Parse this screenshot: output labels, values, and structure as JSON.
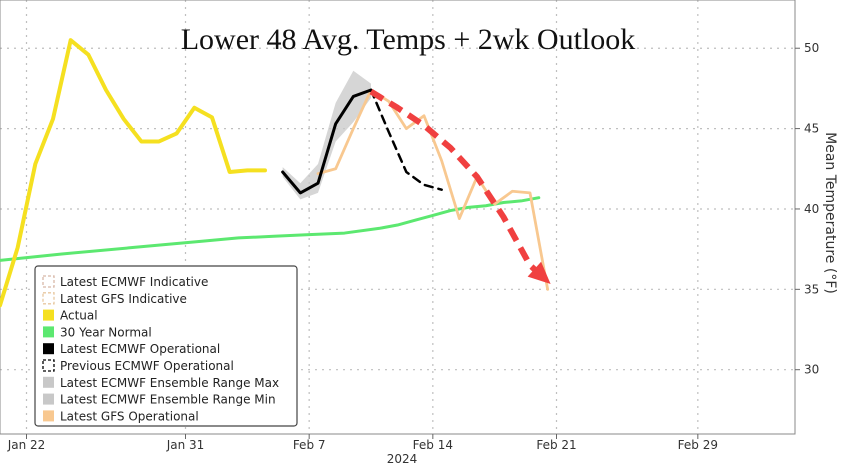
{
  "chart_data": {
    "type": "line",
    "title": "Lower 48 Avg. Temps + 2wk Outlook",
    "xlabel": "2024",
    "ylabel": "Mean Temperature (°F)",
    "ylim": [
      26,
      53
    ],
    "y_ticks": [
      30,
      35,
      40,
      45,
      50
    ],
    "x_ticks": [
      {
        "label": "Jan 22",
        "day": 22
      },
      {
        "label": "Jan 31",
        "day": 31
      },
      {
        "label": "Feb 7",
        "day": 38
      },
      {
        "label": "Feb 14",
        "day": 45
      },
      {
        "label": "Feb 21",
        "day": 52
      },
      {
        "label": "Feb 29",
        "day": 60
      }
    ],
    "xlim": [
      20.5,
      65.5
    ],
    "grid": true,
    "legend_position": "bottom-left",
    "series": [
      {
        "name": "Latest ECMWF Indicative",
        "style": "legend-only",
        "color": "#d8b8a8",
        "x": [],
        "y": []
      },
      {
        "name": "Latest GFS Indicative",
        "style": "legend-only",
        "color": "#e8c8a0",
        "x": [],
        "y": []
      },
      {
        "name": "Actual",
        "style": "line",
        "color": "#f5e020",
        "x": [
          20.5,
          21.5,
          22.5,
          23.5,
          24.5,
          25.5,
          26.5,
          27.5,
          28.5,
          29.5,
          30.5,
          31.5,
          32.5,
          33.5,
          34.5,
          35.5
        ],
        "y": [
          34,
          37.6,
          42.8,
          45.6,
          50.5,
          49.6,
          47.4,
          45.6,
          44.2,
          44.2,
          44.7,
          46.3,
          45.7,
          42.3,
          42.4,
          42.4
        ]
      },
      {
        "name": "30 Year Normal",
        "style": "line",
        "color": "#5ce870",
        "x": [
          20.5,
          24,
          28,
          32,
          34,
          36,
          38,
          40,
          42,
          43,
          44,
          45,
          46,
          47,
          48,
          49,
          50,
          51
        ],
        "y": [
          36.8,
          37.2,
          37.6,
          38.0,
          38.2,
          38.3,
          38.4,
          38.5,
          38.8,
          39.0,
          39.3,
          39.6,
          39.9,
          40.1,
          40.2,
          40.4,
          40.5,
          40.7
        ]
      },
      {
        "name": "Latest ECMWF Operational",
        "style": "line",
        "color": "#000000",
        "x": [
          36.5,
          37.5,
          38.5,
          39.5,
          40.5,
          41.5
        ],
        "y": [
          42.3,
          41.0,
          41.6,
          45.3,
          47.0,
          47.4
        ]
      },
      {
        "name": "Previous ECMWF Operational",
        "style": "dashed",
        "color": "#000000",
        "x": [
          41.5,
          42.5,
          43.5,
          44.5,
          45.5
        ],
        "y": [
          47.4,
          44.8,
          42.3,
          41.5,
          41.2
        ]
      },
      {
        "name": "Latest ECMWF Ensemble Range Max",
        "style": "band-max",
        "color": "#c8c8c8",
        "x": [
          36.5,
          37.5,
          38.5,
          39.5,
          40.5,
          41.5
        ],
        "y": [
          42.6,
          41.6,
          42.8,
          46.6,
          48.6,
          47.8
        ]
      },
      {
        "name": "Latest ECMWF Ensemble Range Min",
        "style": "band-min",
        "color": "#c8c8c8",
        "x": [
          36.5,
          37.5,
          38.5,
          39.5,
          40.5,
          41.5
        ],
        "y": [
          42.0,
          40.6,
          41.0,
          44.2,
          45.4,
          46.9
        ]
      },
      {
        "name": "Latest GFS Operational",
        "style": "line",
        "color": "#f8c890",
        "x": [
          38.5,
          39.5,
          40.5,
          41.5,
          42.5,
          43.5,
          44.5,
          45.5,
          46.5,
          47.5,
          48.5,
          49.5,
          50.5,
          51.5
        ],
        "y": [
          42.2,
          42.5,
          45.0,
          47.4,
          46.7,
          45.0,
          45.8,
          43.0,
          39.4,
          42.0,
          40.3,
          41.1,
          41.0,
          35.0
        ]
      },
      {
        "name": "",
        "style": "arrow",
        "color": "#f04040",
        "x": [
          41.5,
          43,
          44.5,
          46,
          47.5,
          49,
          50.5,
          51.5
        ],
        "y": [
          47.3,
          46.3,
          45.2,
          43.8,
          42.0,
          39.5,
          36.5,
          35.5
        ]
      }
    ]
  }
}
